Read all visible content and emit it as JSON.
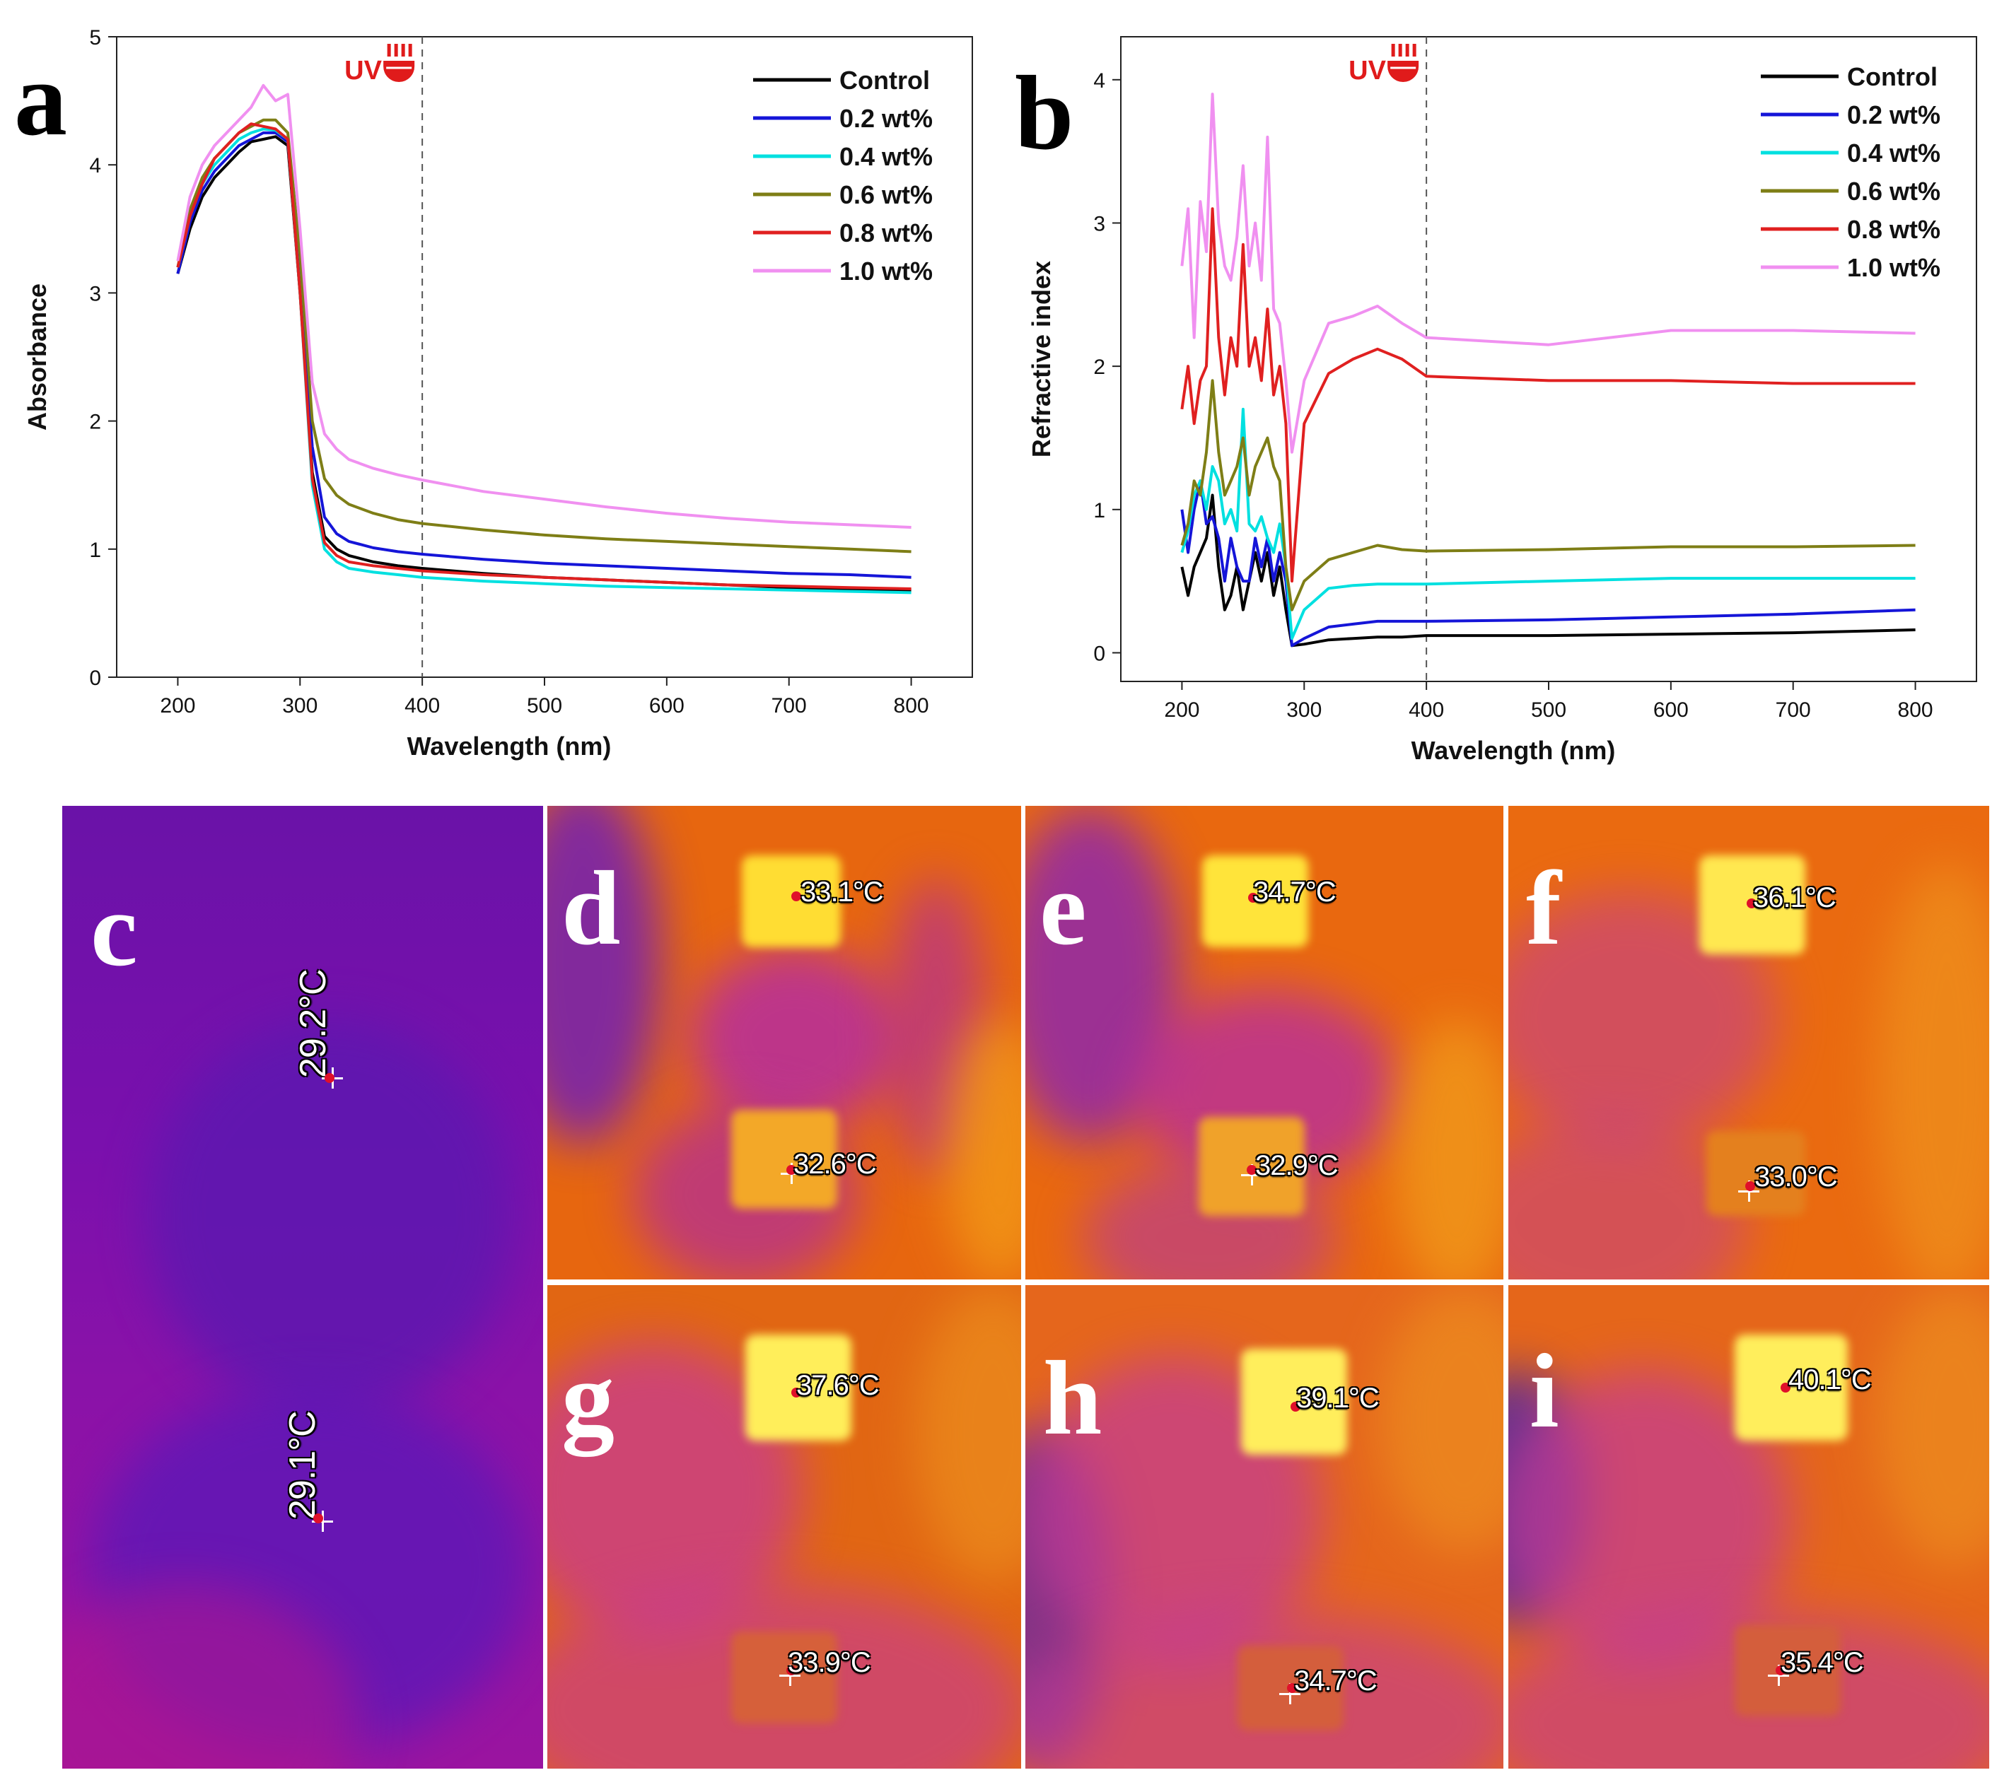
{
  "chart_data": [
    {
      "type": "line",
      "panel": "a",
      "xlabel": "Wavelength (nm)",
      "ylabel": "Absorbance",
      "xlim": [
        150,
        850
      ],
      "ylim": [
        0,
        5
      ],
      "xticks": [
        200,
        300,
        400,
        500,
        600,
        700,
        800
      ],
      "yticks": [
        0,
        1,
        2,
        3,
        4,
        5
      ],
      "reference_line_x": 400,
      "annotation": "UV",
      "legend_position": "top-right",
      "series": [
        {
          "name": "Control",
          "color": "#000000",
          "x": [
            200,
            210,
            220,
            230,
            240,
            250,
            260,
            270,
            280,
            290,
            300,
            310,
            320,
            330,
            340,
            360,
            380,
            400,
            450,
            500,
            550,
            600,
            650,
            700,
            750,
            800
          ],
          "y": [
            3.15,
            3.5,
            3.75,
            3.9,
            4.0,
            4.1,
            4.18,
            4.2,
            4.22,
            4.15,
            3.0,
            1.6,
            1.1,
            1.0,
            0.95,
            0.9,
            0.87,
            0.85,
            0.81,
            0.78,
            0.76,
            0.74,
            0.72,
            0.7,
            0.69,
            0.68
          ]
        },
        {
          "name": "0.2 wt%",
          "color": "#1515d8",
          "x": [
            200,
            210,
            220,
            230,
            240,
            250,
            260,
            270,
            280,
            290,
            300,
            310,
            320,
            330,
            340,
            360,
            380,
            400,
            450,
            500,
            550,
            600,
            650,
            700,
            750,
            800
          ],
          "y": [
            3.15,
            3.55,
            3.8,
            3.95,
            4.05,
            4.15,
            4.2,
            4.25,
            4.25,
            4.18,
            3.1,
            1.8,
            1.25,
            1.12,
            1.06,
            1.01,
            0.98,
            0.96,
            0.92,
            0.89,
            0.87,
            0.85,
            0.83,
            0.81,
            0.8,
            0.78
          ]
        },
        {
          "name": "0.4 wt%",
          "color": "#00e0e0",
          "x": [
            200,
            210,
            220,
            230,
            240,
            250,
            260,
            270,
            280,
            290,
            300,
            310,
            320,
            330,
            340,
            360,
            380,
            400,
            450,
            500,
            550,
            600,
            650,
            700,
            750,
            800
          ],
          "y": [
            3.2,
            3.6,
            3.85,
            4.0,
            4.1,
            4.2,
            4.25,
            4.28,
            4.27,
            4.2,
            3.0,
            1.5,
            1.0,
            0.9,
            0.85,
            0.82,
            0.8,
            0.78,
            0.75,
            0.73,
            0.71,
            0.7,
            0.69,
            0.68,
            0.67,
            0.66
          ]
        },
        {
          "name": "0.6 wt%",
          "color": "#7e7e16",
          "x": [
            200,
            210,
            220,
            230,
            240,
            250,
            260,
            270,
            280,
            290,
            300,
            310,
            320,
            330,
            340,
            360,
            380,
            400,
            450,
            500,
            550,
            600,
            650,
            700,
            750,
            800
          ],
          "y": [
            3.2,
            3.65,
            3.9,
            4.05,
            4.15,
            4.25,
            4.3,
            4.35,
            4.35,
            4.25,
            3.3,
            2.0,
            1.55,
            1.42,
            1.35,
            1.28,
            1.23,
            1.2,
            1.15,
            1.11,
            1.08,
            1.06,
            1.04,
            1.02,
            1.0,
            0.98
          ]
        },
        {
          "name": "0.8 wt%",
          "color": "#e02020",
          "x": [
            200,
            210,
            220,
            230,
            240,
            250,
            260,
            270,
            280,
            290,
            300,
            310,
            320,
            330,
            340,
            360,
            380,
            400,
            450,
            500,
            550,
            600,
            650,
            700,
            750,
            800
          ],
          "y": [
            3.2,
            3.6,
            3.85,
            4.05,
            4.15,
            4.25,
            4.32,
            4.3,
            4.28,
            4.2,
            3.0,
            1.55,
            1.05,
            0.95,
            0.9,
            0.87,
            0.85,
            0.83,
            0.8,
            0.78,
            0.76,
            0.74,
            0.72,
            0.71,
            0.7,
            0.69
          ]
        },
        {
          "name": "1.0 wt%",
          "color": "#f090f0",
          "x": [
            200,
            210,
            220,
            230,
            240,
            250,
            260,
            270,
            280,
            290,
            300,
            310,
            320,
            330,
            340,
            360,
            380,
            400,
            450,
            500,
            550,
            600,
            650,
            700,
            750,
            800
          ],
          "y": [
            3.25,
            3.75,
            4.0,
            4.15,
            4.25,
            4.35,
            4.45,
            4.62,
            4.5,
            4.55,
            3.5,
            2.3,
            1.9,
            1.78,
            1.7,
            1.63,
            1.58,
            1.54,
            1.45,
            1.39,
            1.33,
            1.28,
            1.24,
            1.21,
            1.19,
            1.17
          ]
        }
      ]
    },
    {
      "type": "line",
      "panel": "b",
      "xlabel": "Wavelength (nm)",
      "ylabel": "Refractive index",
      "xlim": [
        150,
        850
      ],
      "ylim": [
        -0.2,
        4.3
      ],
      "xticks": [
        200,
        300,
        400,
        500,
        600,
        700,
        800
      ],
      "yticks": [
        0,
        1,
        2,
        3,
        4
      ],
      "reference_line_x": 400,
      "annotation": "UV",
      "legend_position": "top-right",
      "series": [
        {
          "name": "Control",
          "color": "#000000",
          "x": [
            200,
            205,
            210,
            215,
            220,
            225,
            230,
            235,
            240,
            245,
            250,
            255,
            260,
            265,
            270,
            275,
            280,
            285,
            290,
            300,
            320,
            340,
            360,
            380,
            400,
            500,
            600,
            700,
            800
          ],
          "y": [
            0.6,
            0.4,
            0.6,
            0.7,
            0.8,
            1.1,
            0.6,
            0.3,
            0.4,
            0.6,
            0.3,
            0.5,
            0.7,
            0.5,
            0.7,
            0.4,
            0.6,
            0.3,
            0.05,
            0.06,
            0.09,
            0.1,
            0.11,
            0.11,
            0.12,
            0.12,
            0.13,
            0.14,
            0.16
          ]
        },
        {
          "name": "0.2 wt%",
          "color": "#1515d8",
          "x": [
            200,
            205,
            210,
            215,
            220,
            225,
            230,
            235,
            240,
            245,
            250,
            255,
            260,
            265,
            270,
            275,
            280,
            285,
            290,
            300,
            320,
            340,
            360,
            380,
            400,
            500,
            600,
            700,
            800
          ],
          "y": [
            1.0,
            0.7,
            1.0,
            1.2,
            0.9,
            0.95,
            0.8,
            0.5,
            0.8,
            0.6,
            0.5,
            0.5,
            0.8,
            0.6,
            0.8,
            0.5,
            0.7,
            0.5,
            0.05,
            0.1,
            0.18,
            0.2,
            0.22,
            0.22,
            0.22,
            0.23,
            0.25,
            0.27,
            0.3
          ]
        },
        {
          "name": "0.4 wt%",
          "color": "#00e0e0",
          "x": [
            200,
            205,
            210,
            215,
            220,
            225,
            230,
            235,
            240,
            245,
            250,
            255,
            260,
            265,
            270,
            275,
            280,
            285,
            290,
            300,
            320,
            340,
            360,
            380,
            400,
            500,
            600,
            700,
            800
          ],
          "y": [
            0.7,
            0.85,
            1.1,
            1.2,
            1.0,
            1.3,
            1.2,
            0.9,
            1.0,
            0.85,
            1.7,
            0.9,
            0.85,
            0.95,
            0.8,
            0.7,
            0.9,
            0.6,
            0.1,
            0.3,
            0.45,
            0.47,
            0.48,
            0.48,
            0.48,
            0.5,
            0.52,
            0.52,
            0.52
          ]
        },
        {
          "name": "0.6 wt%",
          "color": "#7e7e16",
          "x": [
            200,
            205,
            210,
            215,
            220,
            225,
            230,
            235,
            240,
            245,
            250,
            255,
            260,
            265,
            270,
            275,
            280,
            285,
            290,
            300,
            320,
            340,
            360,
            380,
            400,
            500,
            600,
            700,
            800
          ],
          "y": [
            0.75,
            0.9,
            1.2,
            1.1,
            1.4,
            1.9,
            1.4,
            1.1,
            1.2,
            1.3,
            1.5,
            1.1,
            1.3,
            1.4,
            1.5,
            1.3,
            1.2,
            0.6,
            0.3,
            0.5,
            0.65,
            0.7,
            0.75,
            0.72,
            0.71,
            0.72,
            0.74,
            0.74,
            0.75
          ]
        },
        {
          "name": "0.8 wt%",
          "color": "#e02020",
          "x": [
            200,
            205,
            210,
            215,
            220,
            225,
            230,
            235,
            240,
            245,
            250,
            255,
            260,
            265,
            270,
            275,
            280,
            285,
            290,
            300,
            320,
            340,
            360,
            380,
            400,
            500,
            600,
            700,
            800
          ],
          "y": [
            1.7,
            2.0,
            1.6,
            1.9,
            2.0,
            3.1,
            2.2,
            1.8,
            2.2,
            2.0,
            2.85,
            2.0,
            2.2,
            1.9,
            2.4,
            1.8,
            2.0,
            1.6,
            0.5,
            1.6,
            1.95,
            2.05,
            2.12,
            2.05,
            1.93,
            1.9,
            1.9,
            1.88,
            1.88
          ]
        },
        {
          "name": "1.0 wt%",
          "color": "#f090f0",
          "x": [
            200,
            205,
            210,
            215,
            220,
            225,
            230,
            235,
            240,
            245,
            250,
            255,
            260,
            265,
            270,
            275,
            280,
            285,
            290,
            300,
            320,
            340,
            360,
            380,
            400,
            500,
            600,
            700,
            800
          ],
          "y": [
            2.7,
            3.1,
            2.2,
            3.15,
            2.8,
            3.9,
            3.0,
            2.7,
            2.6,
            2.9,
            3.4,
            2.7,
            3.0,
            2.6,
            3.6,
            2.4,
            2.3,
            1.9,
            1.4,
            1.9,
            2.3,
            2.35,
            2.42,
            2.3,
            2.2,
            2.15,
            2.25,
            2.25,
            2.23
          ]
        }
      ]
    }
  ],
  "thermal_images": [
    {
      "panel": "c",
      "readings": [
        "29.2°C",
        "29.1°C"
      ]
    },
    {
      "panel": "d",
      "readings": [
        "33.1°C",
        "32.6°C"
      ]
    },
    {
      "panel": "e",
      "readings": [
        "34.7°C",
        "32.9°C"
      ]
    },
    {
      "panel": "f",
      "readings": [
        "36.1°C",
        "33.0°C"
      ]
    },
    {
      "panel": "g",
      "readings": [
        "37.6°C",
        "33.9°C"
      ]
    },
    {
      "panel": "h",
      "readings": [
        "39.1°C",
        "34.7°C"
      ]
    },
    {
      "panel": "i",
      "readings": [
        "40.1°C",
        "35.4°C"
      ]
    }
  ]
}
